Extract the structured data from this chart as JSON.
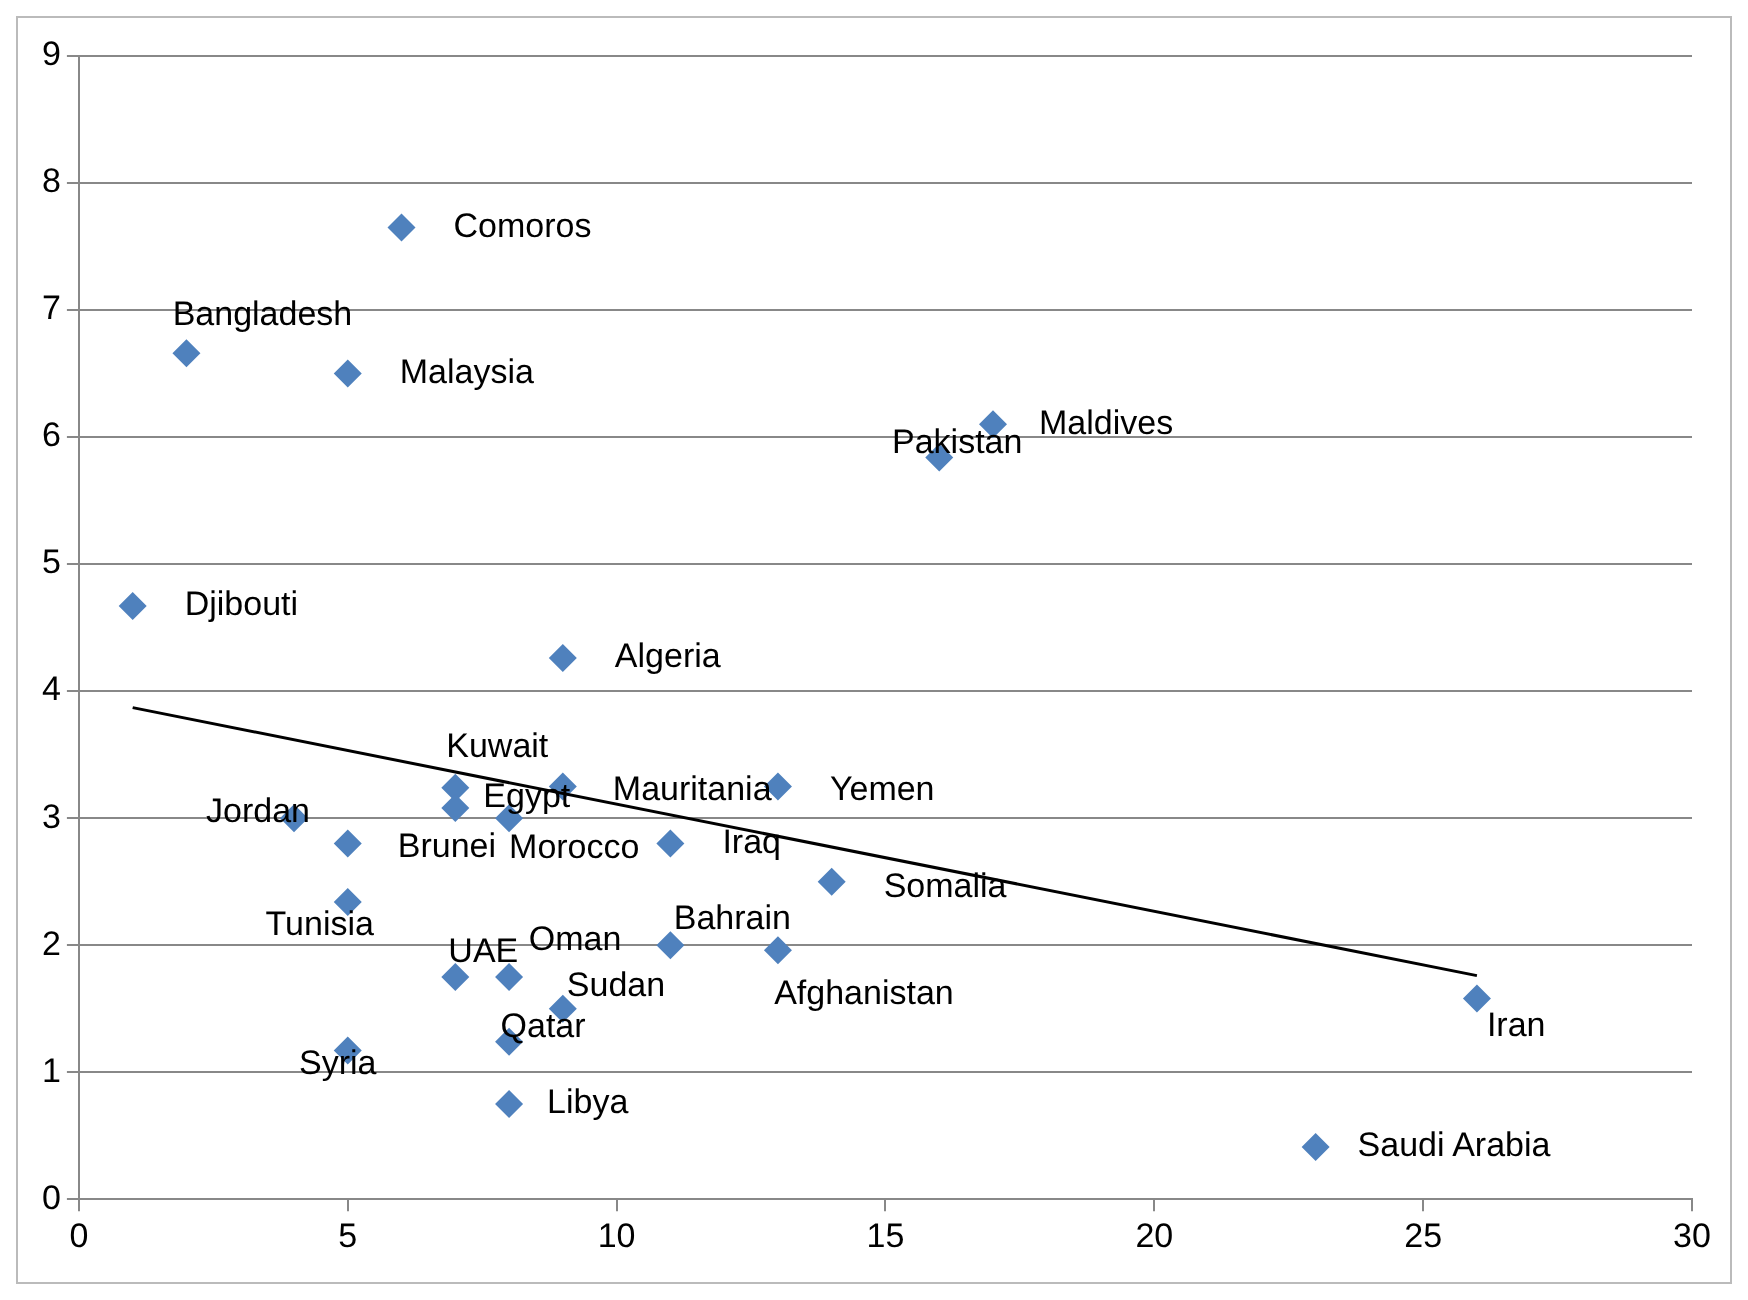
{
  "chart_data": {
    "type": "scatter",
    "xlim": [
      0,
      30
    ],
    "xticks": [
      0,
      5,
      10,
      15,
      20,
      25,
      30
    ],
    "ylim": [
      0,
      9
    ],
    "yticks": [
      0,
      1,
      2,
      3,
      4,
      5,
      6,
      7,
      8,
      9
    ],
    "grid": "y",
    "legend": false,
    "marker": "diamond",
    "series": [
      {
        "color": "#4f81bd",
        "x": [
          6,
          2,
          5,
          16,
          17,
          1,
          9,
          7,
          7,
          9,
          13,
          4,
          5,
          8,
          11,
          14,
          5,
          7,
          8,
          9,
          8,
          5,
          11,
          13,
          26,
          23,
          8
        ],
        "values": [
          7.65,
          6.66,
          6.5,
          5.84,
          6.1,
          4.67,
          4.26,
          3.24,
          3.08,
          3.25,
          3.25,
          3,
          2.8,
          3,
          2.8,
          2.5,
          2.34,
          1.75,
          1.75,
          1.5,
          1.24,
          1.17,
          2,
          1.96,
          1.58,
          0.41,
          0.75
        ]
      },
      {
        "type": "line",
        "color": "#000000",
        "marker": "none",
        "x": [
          1,
          26
        ],
        "values": [
          3.87,
          1.76
        ]
      }
    ],
    "annotations": [
      {
        "text": "Comoros",
        "x": 6,
        "y": 7.65
      },
      {
        "text": "Bangladesh",
        "x": 2,
        "y": 6.66
      },
      {
        "text": "Malaysia",
        "x": 5,
        "y": 6.5
      },
      {
        "text": "Pakistan",
        "x": 16,
        "y": 5.84
      },
      {
        "text": "Maldives",
        "x": 17,
        "y": 6.1
      },
      {
        "text": "Djibouti",
        "x": 1,
        "y": 4.67
      },
      {
        "text": "Algeria",
        "x": 9,
        "y": 4.26
      },
      {
        "text": "Kuwait",
        "x": 7,
        "y": 3.24
      },
      {
        "text": "Egypt",
        "x": 7,
        "y": 3.08
      },
      {
        "text": "Mauritania",
        "x": 9,
        "y": 3.25
      },
      {
        "text": "Yemen",
        "x": 13,
        "y": 3.25
      },
      {
        "text": "Jordan",
        "x": 4,
        "y": 3
      },
      {
        "text": "Brunei",
        "x": 5,
        "y": 2.8
      },
      {
        "text": "Morocco",
        "x": 8,
        "y": 3
      },
      {
        "text": "Iraq",
        "x": 11,
        "y": 2.8
      },
      {
        "text": "Somalia",
        "x": 14,
        "y": 2.5
      },
      {
        "text": "Tunisia",
        "x": 5,
        "y": 2.34
      },
      {
        "text": "UAE",
        "x": 7,
        "y": 1.75
      },
      {
        "text": "Oman",
        "x": 8,
        "y": 1.75
      },
      {
        "text": "Sudan",
        "x": 9,
        "y": 1.5
      },
      {
        "text": "Qatar",
        "x": 8,
        "y": 1.24
      },
      {
        "text": "Syria",
        "x": 5,
        "y": 1.17
      },
      {
        "text": "Bahrain",
        "x": 11,
        "y": 2
      },
      {
        "text": "Afghanistan",
        "x": 13,
        "y": 1.96
      },
      {
        "text": "Iran",
        "x": 26,
        "y": 1.58
      },
      {
        "text": "Saudi Arabia",
        "x": 23,
        "y": 0.41
      },
      {
        "text": "Libya",
        "x": 8,
        "y": 0.75
      }
    ]
  }
}
